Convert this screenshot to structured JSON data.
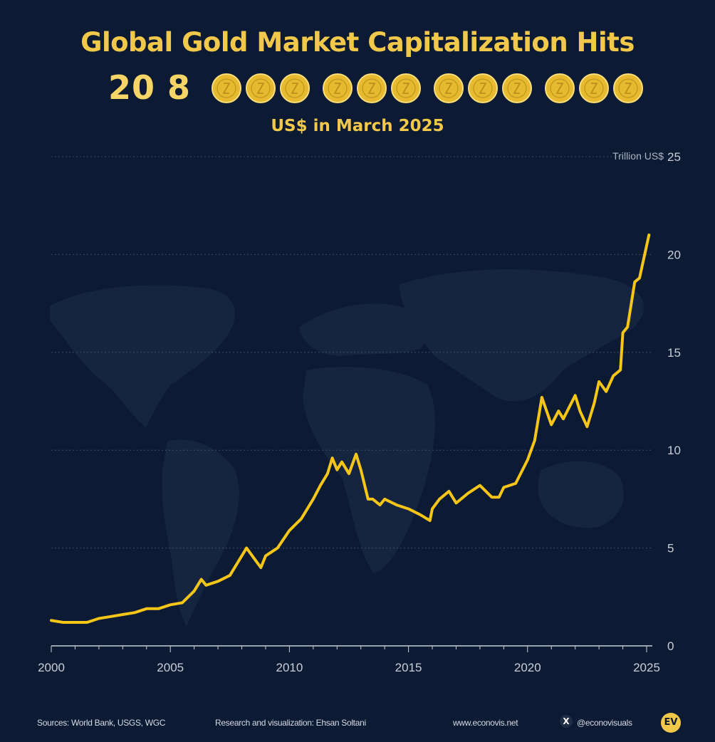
{
  "header": {
    "title": "Global Gold Market Capitalization Hits",
    "big_number": "20 8",
    "coin_group_sizes": [
      3,
      3,
      3,
      3
    ],
    "subtitle": "US$ in March 2025",
    "unit_label": "Trillion US$"
  },
  "colors": {
    "background": "#0c1a33",
    "accent": "#f2c84a",
    "line": "#f5c518",
    "grid": "#3d4b66",
    "map": "#1a2944"
  },
  "footer": {
    "sources": "Sources: World Bank, USGS, WGC",
    "credit": "Research and visualization: Ehsan Soltani",
    "website": "www.econovis.net",
    "x_icon_glyph": "X",
    "handle": "@econovisuals",
    "logo_text": "EV"
  },
  "chart_data": {
    "type": "line",
    "title": "Global Gold Market Capitalization Hits",
    "ylabel": "Trillion US$",
    "xlim": [
      2000,
      2025
    ],
    "ylim": [
      0,
      25
    ],
    "yticks": [
      0,
      5,
      10,
      15,
      20,
      25
    ],
    "xticks": [
      2000,
      2005,
      2010,
      2015,
      2020,
      2025
    ],
    "grid": true,
    "series": [
      {
        "x": [
          2000,
          2000.5,
          2001,
          2001.5,
          2002,
          2002.5,
          2003,
          2003.5,
          2004,
          2004.5,
          2005,
          2005.5,
          2006,
          2006.3,
          2006.5,
          2007,
          2007.5,
          2008,
          2008.2,
          2008.5,
          2008.8,
          2009,
          2009.5,
          2010,
          2010.5,
          2011,
          2011.3,
          2011.6,
          2011.8,
          2012,
          2012.2,
          2012.5,
          2012.8,
          2013,
          2013.3,
          2013.5,
          2013.8,
          2014,
          2014.5,
          2015,
          2015.5,
          2015.9,
          2016,
          2016.3,
          2016.7,
          2017,
          2017.5,
          2018,
          2018.5,
          2018.8,
          2019,
          2019.5,
          2020,
          2020.3,
          2020.6,
          2021,
          2021.3,
          2021.5,
          2022,
          2022.2,
          2022.5,
          2022.8,
          2023,
          2023.3,
          2023.6,
          2023.9,
          2024,
          2024.2,
          2024.5,
          2024.7,
          2025.1
        ],
        "values": [
          1.3,
          1.2,
          1.2,
          1.2,
          1.4,
          1.5,
          1.6,
          1.7,
          1.9,
          1.9,
          2.1,
          2.2,
          2.8,
          3.4,
          3.1,
          3.3,
          3.6,
          4.6,
          5.0,
          4.5,
          4.0,
          4.6,
          5.0,
          5.9,
          6.5,
          7.5,
          8.2,
          8.8,
          9.6,
          9.0,
          9.4,
          8.8,
          9.8,
          9.0,
          7.5,
          7.5,
          7.2,
          7.5,
          7.2,
          7.0,
          6.7,
          6.4,
          7.0,
          7.5,
          7.9,
          7.3,
          7.8,
          8.2,
          7.6,
          7.6,
          8.1,
          8.3,
          9.5,
          10.5,
          12.7,
          11.3,
          12.0,
          11.6,
          12.8,
          12.0,
          11.2,
          12.4,
          13.5,
          13.0,
          13.8,
          14.1,
          16.0,
          16.3,
          18.6,
          18.8,
          21.0
        ]
      }
    ]
  }
}
